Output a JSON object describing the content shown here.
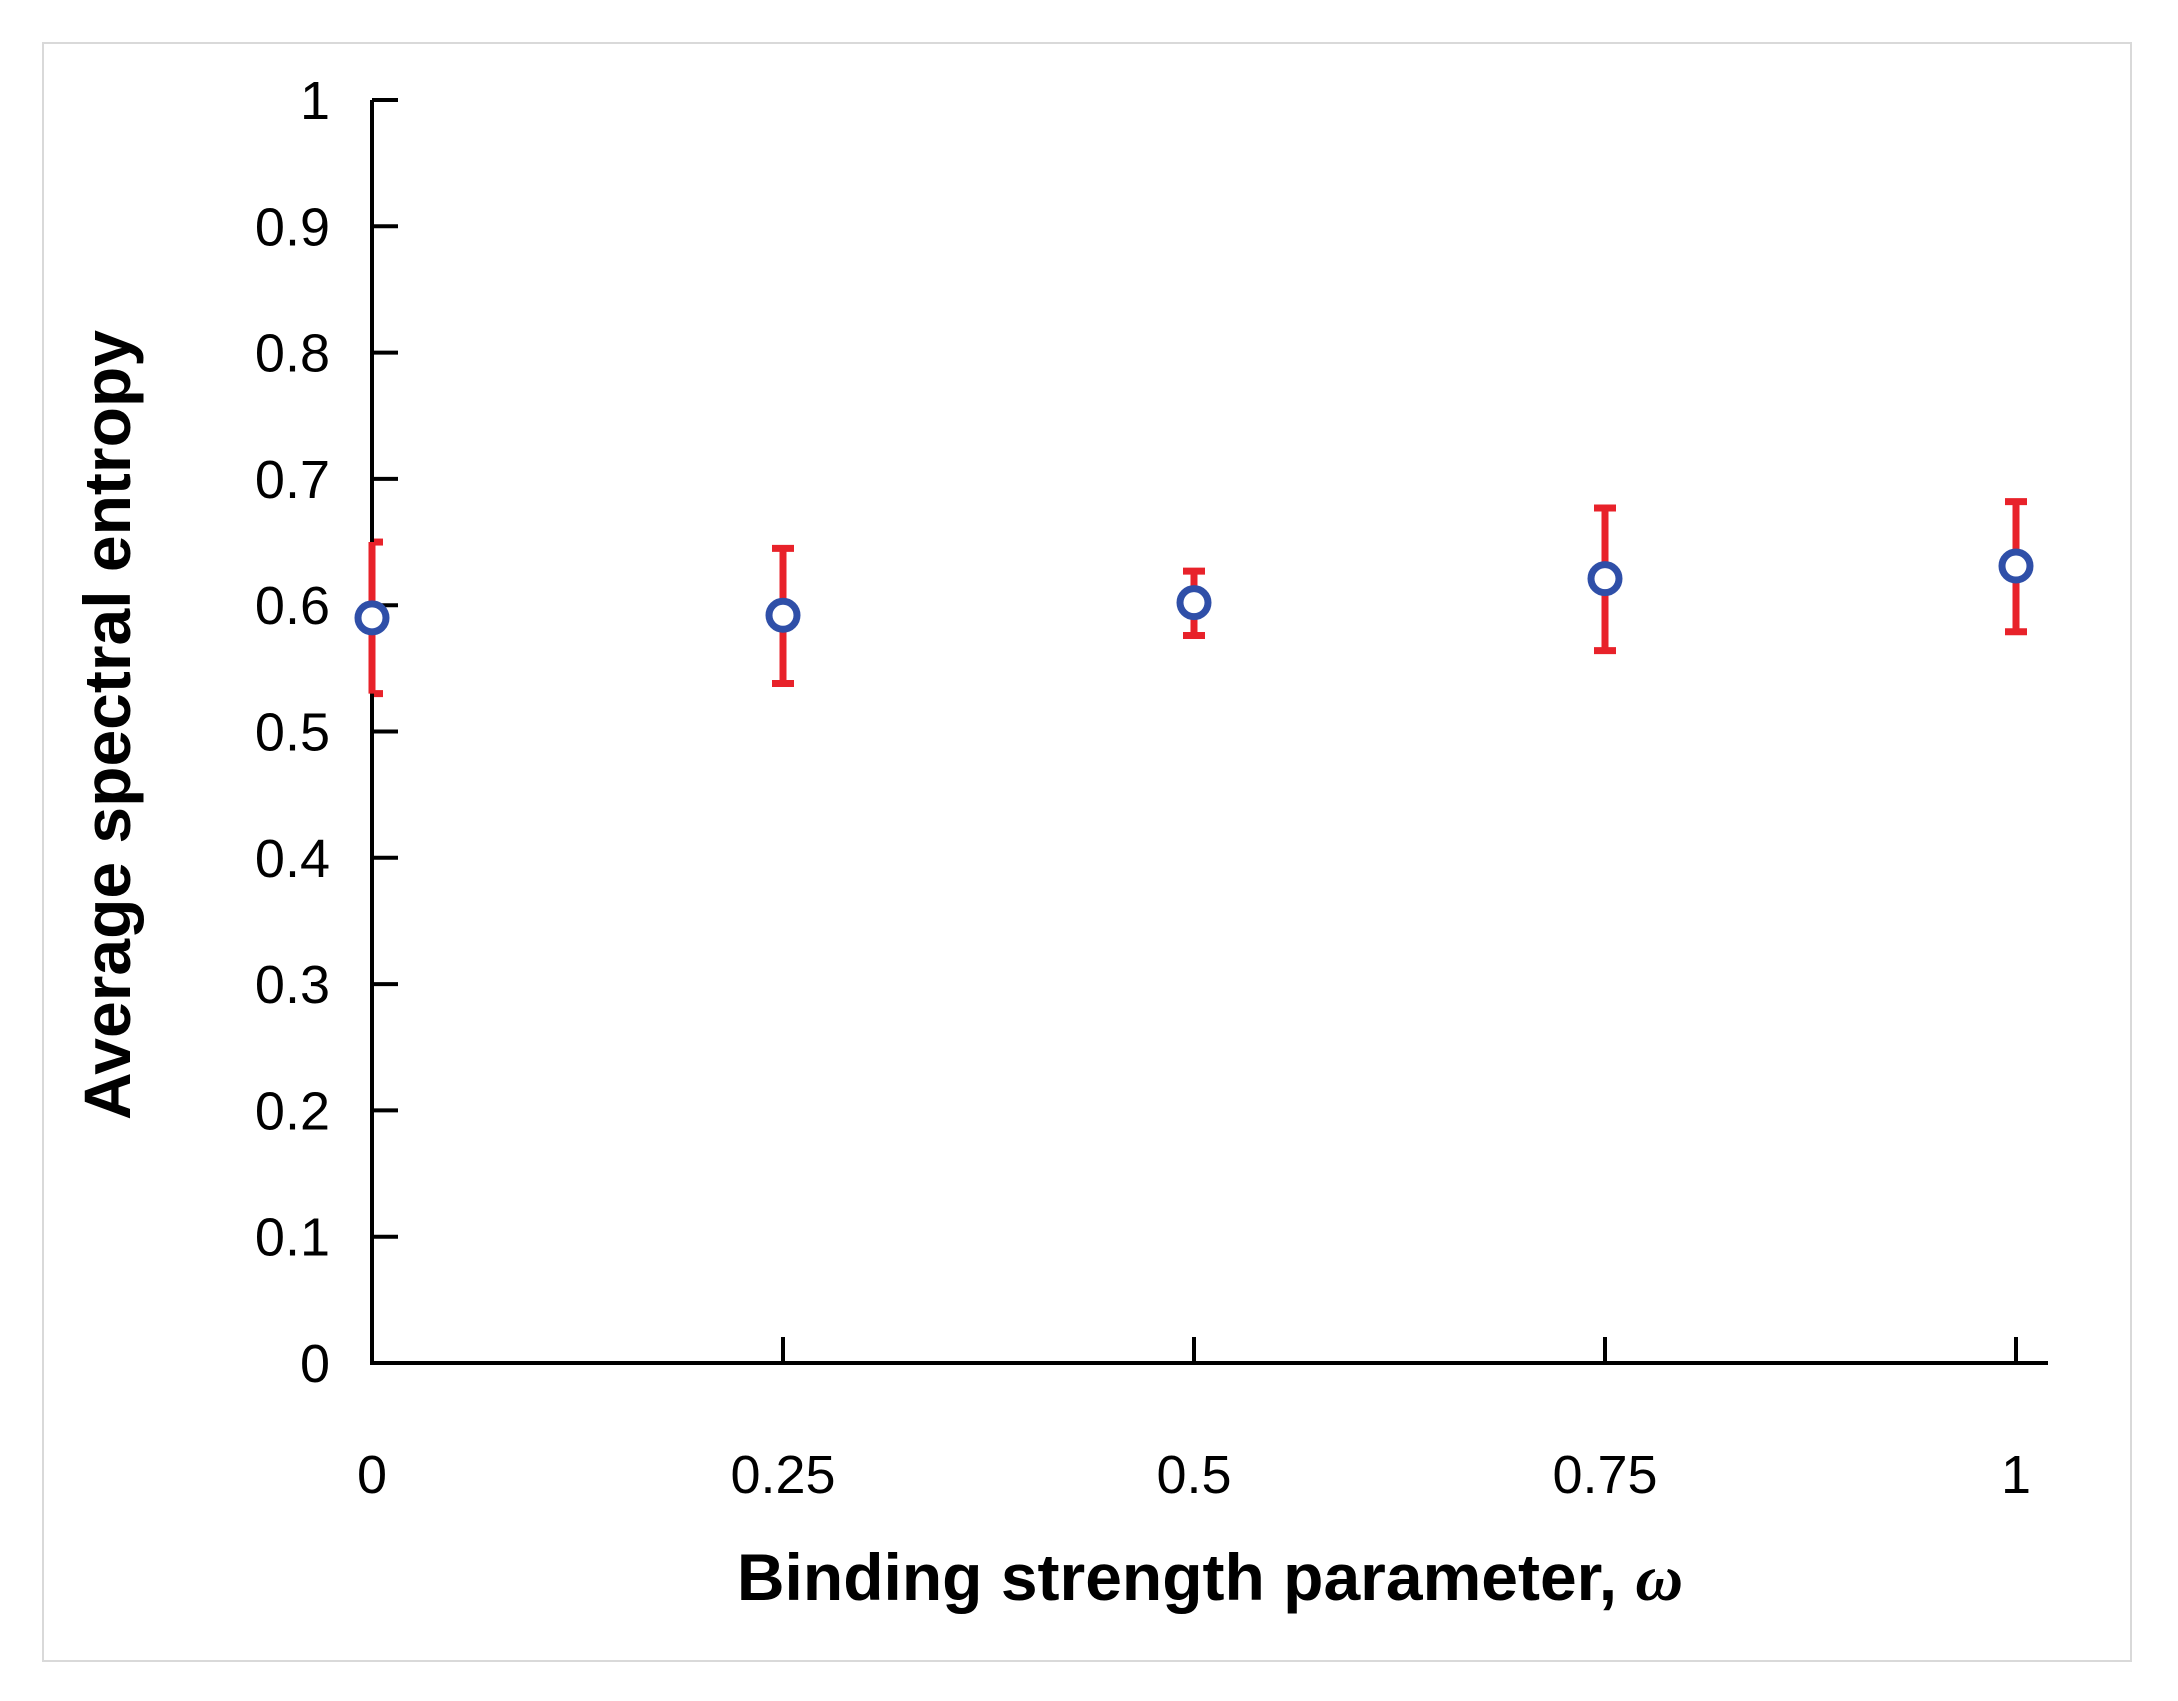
{
  "chart_data": {
    "type": "scatter",
    "x": [
      0,
      0.25,
      0.5,
      0.75,
      1
    ],
    "y": [
      0.59,
      0.592,
      0.602,
      0.621,
      0.631
    ],
    "error_upper": [
      0.65,
      0.645,
      0.627,
      0.677,
      0.682
    ],
    "error_lower": [
      0.53,
      0.538,
      0.576,
      0.564,
      0.579
    ],
    "xlabel": "Binding strength parameter, ",
    "xlabel_symbol": "ω",
    "ylabel": "Average spectral entropy",
    "xlim": [
      0,
      1
    ],
    "ylim": [
      0,
      1
    ],
    "x_ticks": [
      "0",
      "0.25",
      "0.5",
      "0.75",
      "1"
    ],
    "x_tick_values": [
      0,
      0.25,
      0.5,
      0.75,
      1
    ],
    "y_ticks": [
      "0",
      "0.1",
      "0.2",
      "0.3",
      "0.4",
      "0.5",
      "0.6",
      "0.7",
      "0.8",
      "0.9",
      "1"
    ],
    "y_tick_values": [
      0,
      0.1,
      0.2,
      0.3,
      0.4,
      0.5,
      0.6,
      0.7,
      0.8,
      0.9,
      1
    ],
    "grid": false,
    "legend": "none",
    "colors": {
      "marker_stroke": "#2f4fa8",
      "marker_fill": "#ffffff",
      "error_bar": "#e8222a",
      "axis": "#000000"
    }
  }
}
